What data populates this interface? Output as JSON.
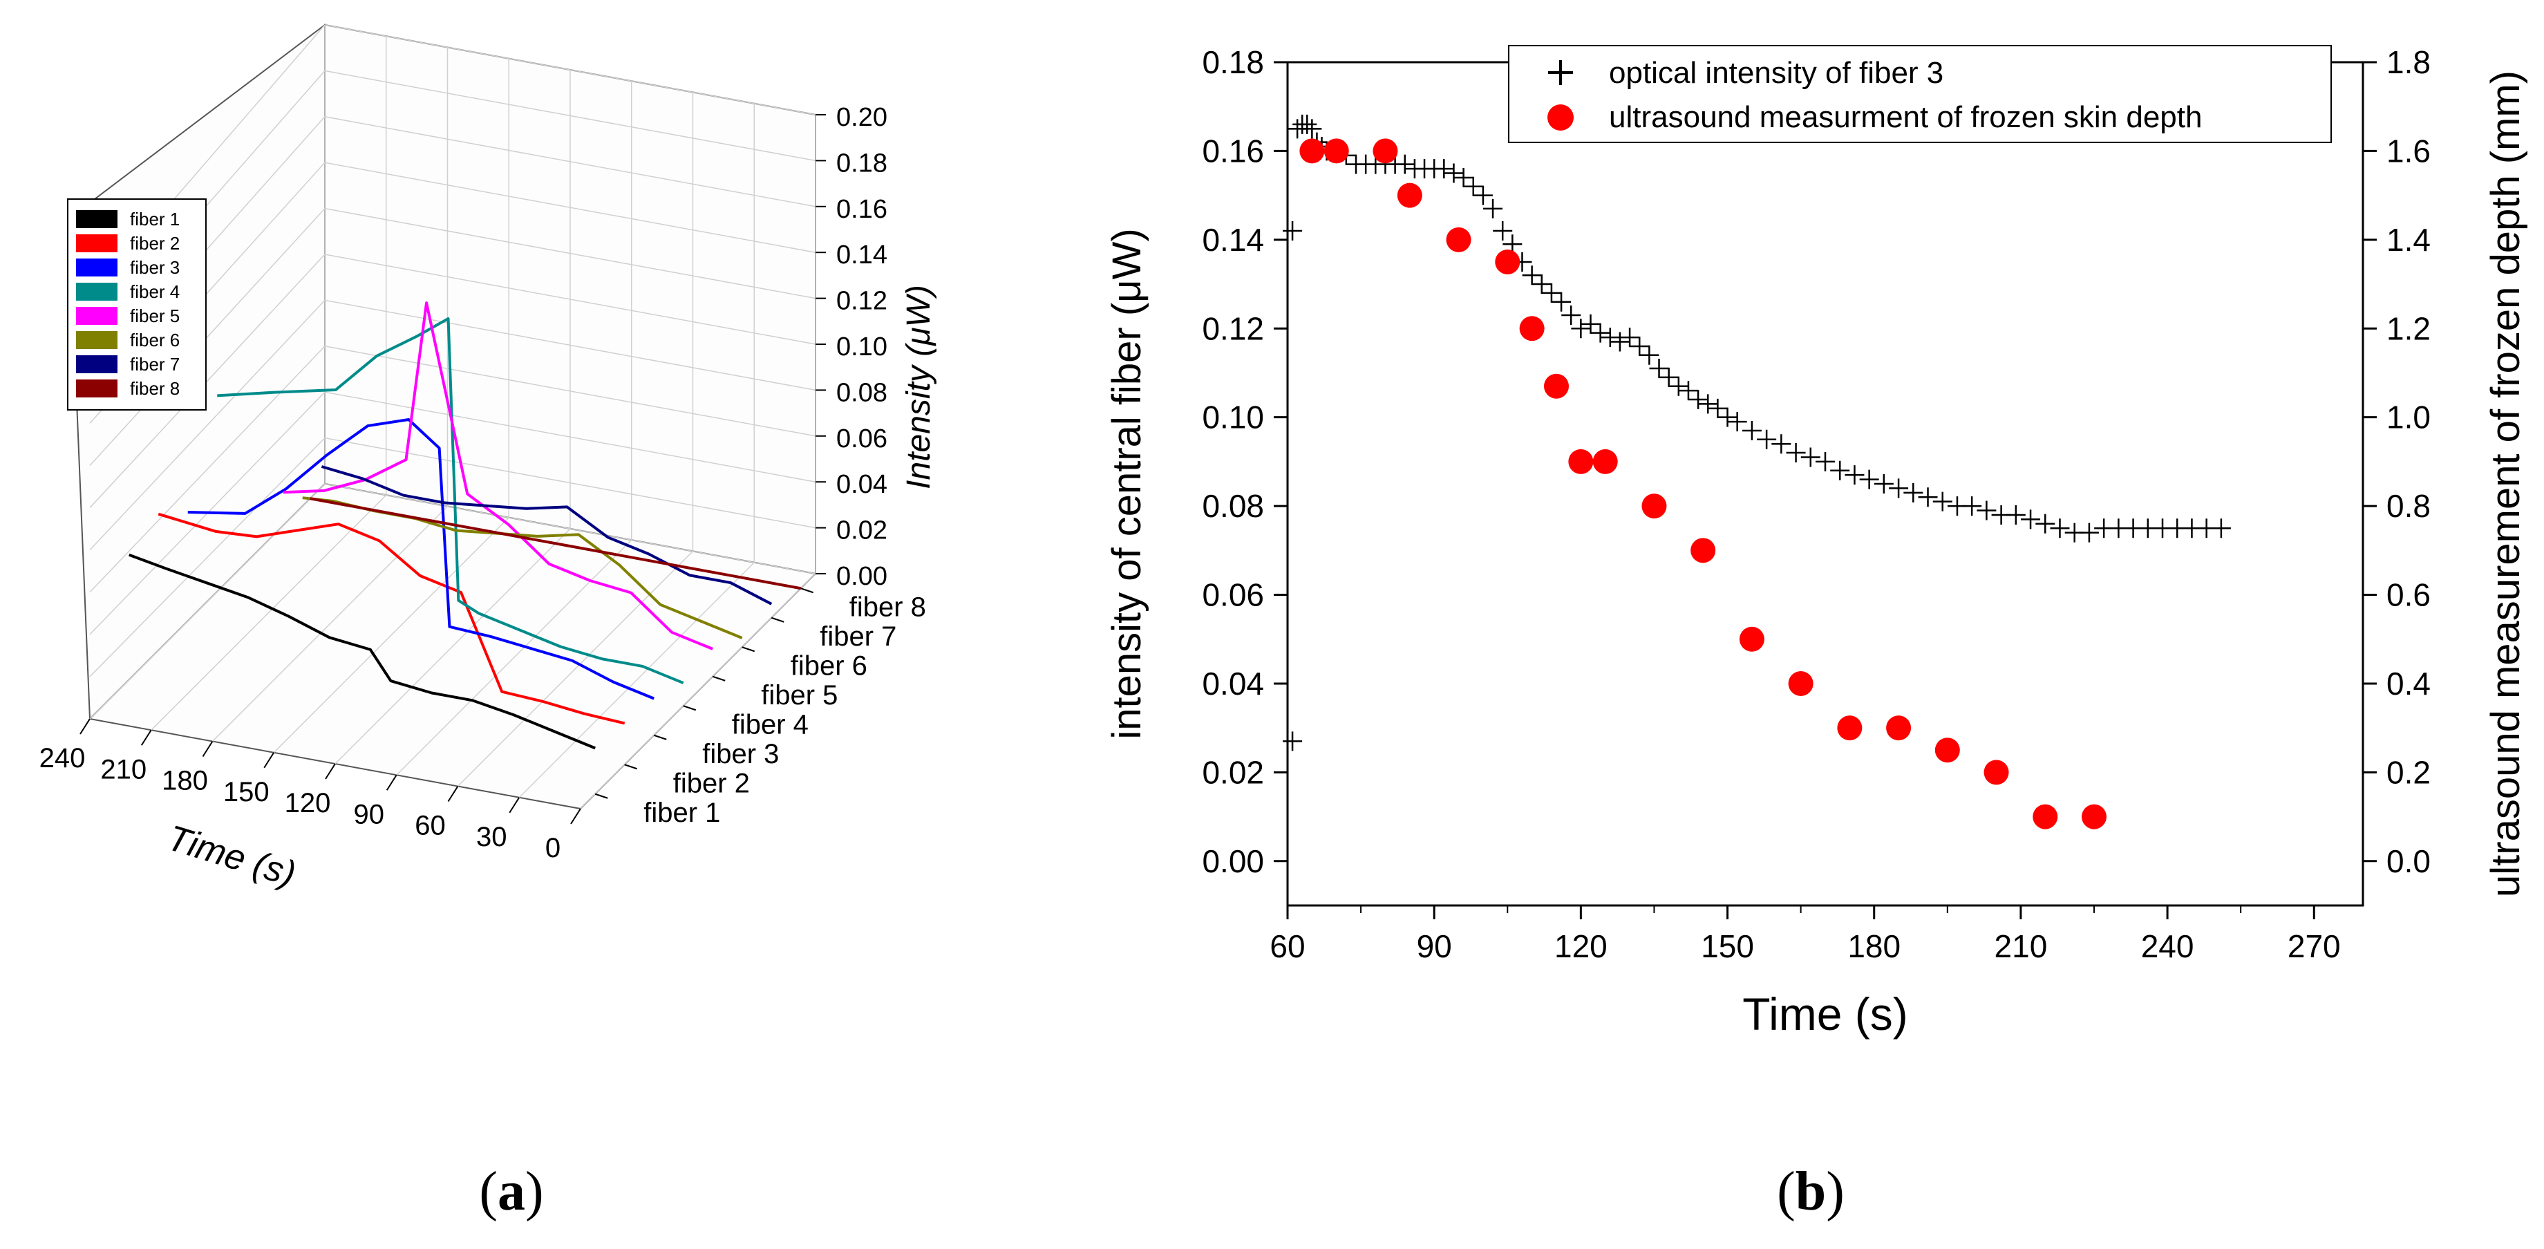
{
  "chart_data": [
    {
      "type": "line",
      "projection": "3d-waterfall",
      "panel_label": "a",
      "xlabel": "Time (s)",
      "zlabel": "Intensity (μW)",
      "x_ticks": [
        "240",
        "210",
        "180",
        "150",
        "120",
        "90",
        "60",
        "30",
        "0"
      ],
      "z_ticks": [
        "0.00",
        "0.02",
        "0.04",
        "0.06",
        "0.08",
        "0.10",
        "0.12",
        "0.14",
        "0.16",
        "0.18",
        "0.20"
      ],
      "xlim": [
        0,
        240
      ],
      "zlim": [
        0,
        0.2
      ],
      "legend": [
        "fiber 1",
        "fiber 2",
        "fiber 3",
        "fiber 4",
        "fiber 5",
        "fiber 6",
        "fiber 7",
        "fiber 8"
      ],
      "legend_position": "top-left",
      "series": [
        {
          "name": "fiber 1",
          "color": "#000000",
          "x": [
            0,
            20,
            40,
            60,
            80,
            100,
            110,
            130,
            150,
            170,
            190,
            210,
            228
          ],
          "values": [
            0.02,
            0.024,
            0.028,
            0.031,
            0.031,
            0.033,
            0.045,
            0.047,
            0.053,
            0.058,
            0.061,
            0.064,
            0.067
          ]
        },
        {
          "name": "fiber 2",
          "color": "#ff0000",
          "x": [
            0,
            20,
            40,
            60,
            80,
            100,
            110,
            120,
            140,
            160,
            180,
            200,
            228
          ],
          "values": [
            0.018,
            0.019,
            0.021,
            0.022,
            0.062,
            0.066,
            0.072,
            0.078,
            0.082,
            0.076,
            0.07,
            0.069,
            0.072
          ]
        },
        {
          "name": "fiber 3",
          "color": "#0000ff",
          "x": [
            0,
            20,
            40,
            60,
            80,
            100,
            105,
            120,
            140,
            160,
            180,
            200,
            228
          ],
          "values": [
            0.016,
            0.02,
            0.026,
            0.028,
            0.03,
            0.031,
            0.108,
            0.118,
            0.112,
            0.096,
            0.078,
            0.064,
            0.06
          ]
        },
        {
          "name": "fiber 4",
          "color": "#008b8b",
          "x": [
            0,
            20,
            40,
            60,
            80,
            100,
            110,
            115,
            130,
            150,
            170,
            200,
            228
          ],
          "values": [
            0.01,
            0.014,
            0.014,
            0.016,
            0.02,
            0.024,
            0.028,
            0.15,
            0.14,
            0.128,
            0.11,
            0.104,
            0.098
          ]
        },
        {
          "name": "fiber 5",
          "color": "#ff00ff",
          "x": [
            0,
            20,
            40,
            60,
            80,
            100,
            120,
            140,
            150,
            170,
            190,
            210
          ],
          "values": [
            0.012,
            0.016,
            0.03,
            0.032,
            0.036,
            0.05,
            0.06,
            0.14,
            0.07,
            0.058,
            0.05,
            0.046
          ]
        },
        {
          "name": "fiber 6",
          "color": "#808000",
          "x": [
            0,
            20,
            40,
            60,
            80,
            100,
            120,
            140,
            160,
            180,
            200,
            215
          ],
          "values": [
            0.004,
            0.008,
            0.012,
            0.026,
            0.036,
            0.032,
            0.03,
            0.028,
            0.03,
            0.03,
            0.031,
            0.03
          ]
        },
        {
          "name": "fiber 7",
          "color": "#000080",
          "x": [
            0,
            20,
            40,
            60,
            80,
            100,
            120,
            140,
            160,
            180,
            200,
            220
          ],
          "values": [
            0.006,
            0.012,
            0.012,
            0.018,
            0.022,
            0.032,
            0.028,
            0.026,
            0.024,
            0.024,
            0.028,
            0.03
          ]
        },
        {
          "name": "fiber 8",
          "color": "#8b0000",
          "x": [
            0,
            40,
            80,
            120,
            160,
            200,
            240
          ],
          "values": [
            0.0,
            0.0,
            0.0,
            0.0,
            0.0,
            0.0,
            0.0
          ]
        }
      ]
    },
    {
      "type": "scatter",
      "panel_label": "b",
      "xlabel": "Time (s)",
      "ylabel": "intensity of central fiber (μW)",
      "y2label": "ultrasound measurement of frozen depth (mm)",
      "xlim": [
        60,
        280
      ],
      "ylim": [
        -0.01,
        0.18
      ],
      "y2lim": [
        -0.1,
        1.8
      ],
      "x_ticks": [
        "60",
        "90",
        "120",
        "150",
        "180",
        "210",
        "240",
        "270"
      ],
      "y_ticks": [
        "0.00",
        "0.02",
        "0.04",
        "0.06",
        "0.08",
        "0.10",
        "0.12",
        "0.14",
        "0.16",
        "0.18"
      ],
      "y2_ticks": [
        "0.0",
        "0.2",
        "0.4",
        "0.6",
        "0.8",
        "1.0",
        "1.2",
        "1.4",
        "1.6",
        "1.8"
      ],
      "legend_position": "top-center",
      "series": [
        {
          "name": "optical intensity of fiber 3",
          "marker": "plus",
          "color": "#000000",
          "axis": "left",
          "x": [
            61,
            61,
            62,
            63,
            64,
            65,
            66,
            67,
            68,
            69,
            70,
            72,
            74,
            76,
            78,
            80,
            82,
            84,
            86,
            88,
            90,
            92,
            94,
            96,
            98,
            100,
            102,
            104,
            106,
            108,
            110,
            112,
            114,
            116,
            118,
            120,
            122,
            124,
            126,
            128,
            130,
            132,
            134,
            136,
            138,
            140,
            142,
            144,
            146,
            148,
            150,
            152,
            155,
            158,
            161,
            164,
            167,
            170,
            173,
            176,
            179,
            182,
            185,
            188,
            191,
            194,
            197,
            200,
            203,
            206,
            209,
            212,
            215,
            218,
            221,
            224,
            227,
            230,
            233,
            236,
            239,
            242,
            245,
            248,
            251
          ],
          "values": [
            0.027,
            0.142,
            0.165,
            0.166,
            0.166,
            0.165,
            0.162,
            0.161,
            0.16,
            0.16,
            0.16,
            0.159,
            0.157,
            0.157,
            0.157,
            0.157,
            0.157,
            0.157,
            0.156,
            0.156,
            0.156,
            0.156,
            0.155,
            0.154,
            0.152,
            0.15,
            0.147,
            0.142,
            0.139,
            0.135,
            0.132,
            0.13,
            0.128,
            0.126,
            0.123,
            0.12,
            0.121,
            0.119,
            0.118,
            0.117,
            0.118,
            0.116,
            0.114,
            0.111,
            0.109,
            0.107,
            0.106,
            0.104,
            0.103,
            0.102,
            0.1,
            0.099,
            0.097,
            0.095,
            0.094,
            0.092,
            0.091,
            0.09,
            0.088,
            0.087,
            0.086,
            0.085,
            0.084,
            0.083,
            0.082,
            0.081,
            0.08,
            0.08,
            0.079,
            0.078,
            0.078,
            0.077,
            0.076,
            0.075,
            0.074,
            0.074,
            0.075,
            0.075,
            0.075,
            0.075,
            0.075,
            0.075,
            0.075,
            0.075,
            0.075
          ]
        },
        {
          "name": "ultrasound measurment of frozen skin depth",
          "marker": "circle",
          "color": "#ff0000",
          "axis": "right",
          "x": [
            65,
            70,
            80,
            85,
            95,
            105,
            110,
            115,
            120,
            125,
            135,
            145,
            155,
            165,
            175,
            185,
            195,
            205,
            215,
            225
          ],
          "values": [
            1.6,
            1.6,
            1.6,
            1.5,
            1.4,
            1.35,
            1.2,
            1.07,
            0.9,
            0.9,
            0.8,
            0.7,
            0.5,
            0.4,
            0.3,
            0.3,
            0.25,
            0.2,
            0.1,
            0.1
          ]
        }
      ]
    }
  ]
}
